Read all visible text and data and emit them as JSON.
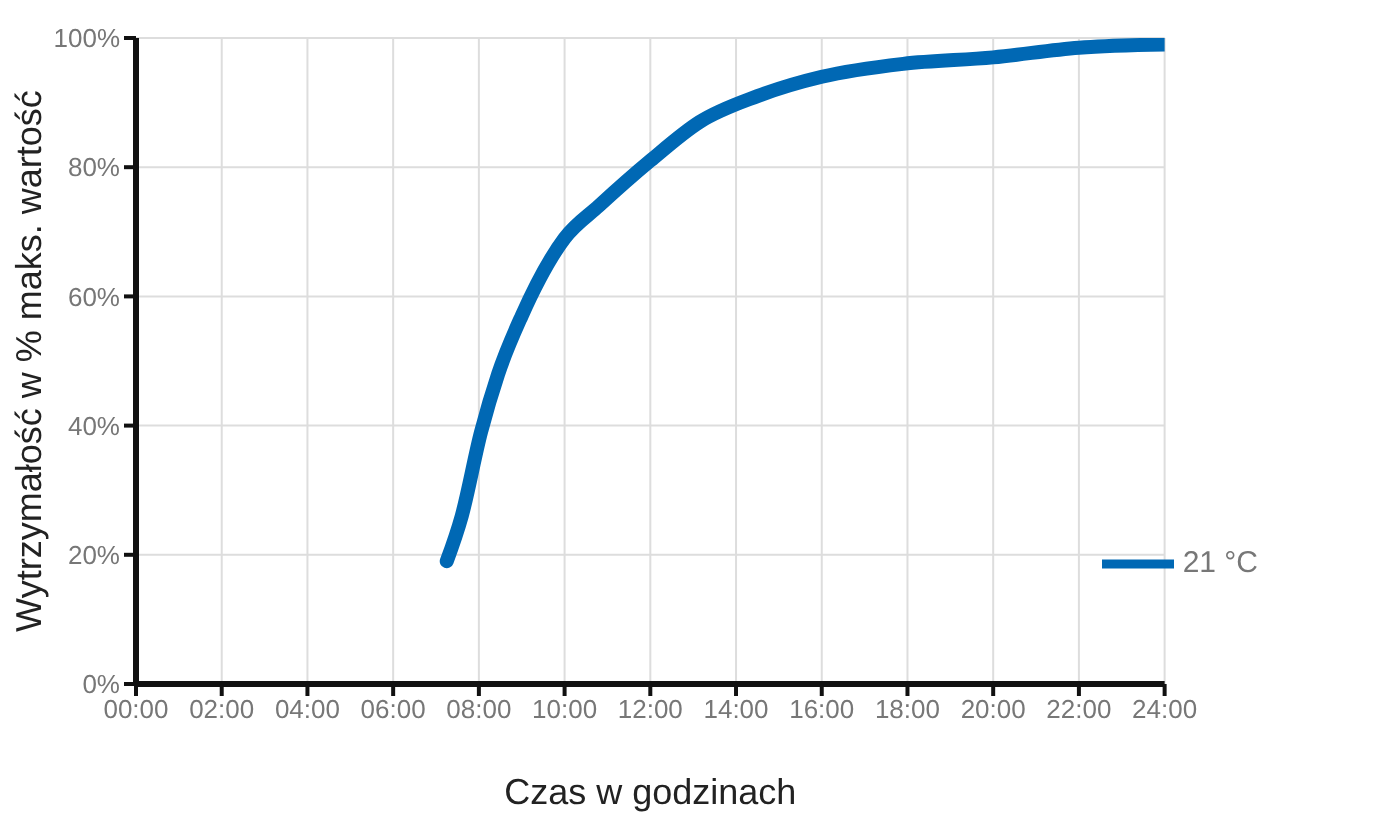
{
  "chart_data": {
    "type": "line",
    "xlabel": "Czas w godzinach",
    "ylabel": "Wytrzymałość w % maks. wartość",
    "xlim": [
      0,
      24
    ],
    "ylim": [
      0,
      100
    ],
    "xticks": [
      {
        "value": 0,
        "label": "00:00"
      },
      {
        "value": 2,
        "label": "02:00"
      },
      {
        "value": 4,
        "label": "04:00"
      },
      {
        "value": 6,
        "label": "06:00"
      },
      {
        "value": 8,
        "label": "08:00"
      },
      {
        "value": 10,
        "label": "10:00"
      },
      {
        "value": 12,
        "label": "12:00"
      },
      {
        "value": 14,
        "label": "14:00"
      },
      {
        "value": 16,
        "label": "16:00"
      },
      {
        "value": 18,
        "label": "18:00"
      },
      {
        "value": 20,
        "label": "20:00"
      },
      {
        "value": 22,
        "label": "22:00"
      },
      {
        "value": 24,
        "label": "24:00"
      }
    ],
    "yticks": [
      {
        "value": 0,
        "label": "0%"
      },
      {
        "value": 20,
        "label": "20%"
      },
      {
        "value": 40,
        "label": "40%"
      },
      {
        "value": 60,
        "label": "60%"
      },
      {
        "value": 80,
        "label": "80%"
      },
      {
        "value": 100,
        "label": "100%"
      }
    ],
    "grid": true,
    "legend": "bottom right",
    "marker": "none",
    "line_style": "solid",
    "x": [
      7.25,
      7.6,
      8.05,
      8.45,
      9.0,
      10.0,
      10.8,
      12.0,
      13.15,
      14.5,
      16.0,
      17.9,
      20.0,
      22.0,
      24.0
    ],
    "series": [
      {
        "name": "21 °C",
        "color": "#0068b4",
        "values": [
          19,
          26,
          39,
          48,
          57,
          69,
          74,
          81,
          87,
          91,
          94,
          96,
          97,
          98.5,
          99
        ]
      }
    ]
  }
}
